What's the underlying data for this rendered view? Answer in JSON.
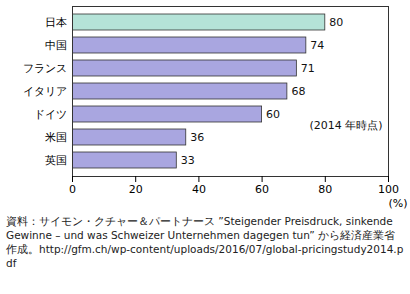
{
  "chart_data": {
    "type": "bar",
    "orientation": "horizontal",
    "categories": [
      "日本",
      "中国",
      "フランス",
      "イタリア",
      "ドイツ",
      "米国",
      "英国"
    ],
    "values": [
      80,
      74,
      71,
      68,
      60,
      36,
      33
    ],
    "colors": [
      "#b5e3d8",
      "#a9a6e0",
      "#a9a6e0",
      "#a9a6e0",
      "#a9a6e0",
      "#a9a6e0",
      "#a9a6e0"
    ],
    "xlim": [
      0,
      100
    ],
    "xticks": [
      0,
      20,
      40,
      60,
      80,
      100
    ],
    "x_label": "(%)",
    "annotation": "(2014 年時点)",
    "caption": "資料：サイモン・クチャー＆パートナース ”Steigender Preisdruck, sinkende Gewinne – und was Schweizer Unternehmen dagegen tun” から経済産業省作成。http://gfm.ch/wp-content/uploads/2016/07/global-pricingstudy2014.pdf",
    "data_labels": true,
    "grid": false
  }
}
